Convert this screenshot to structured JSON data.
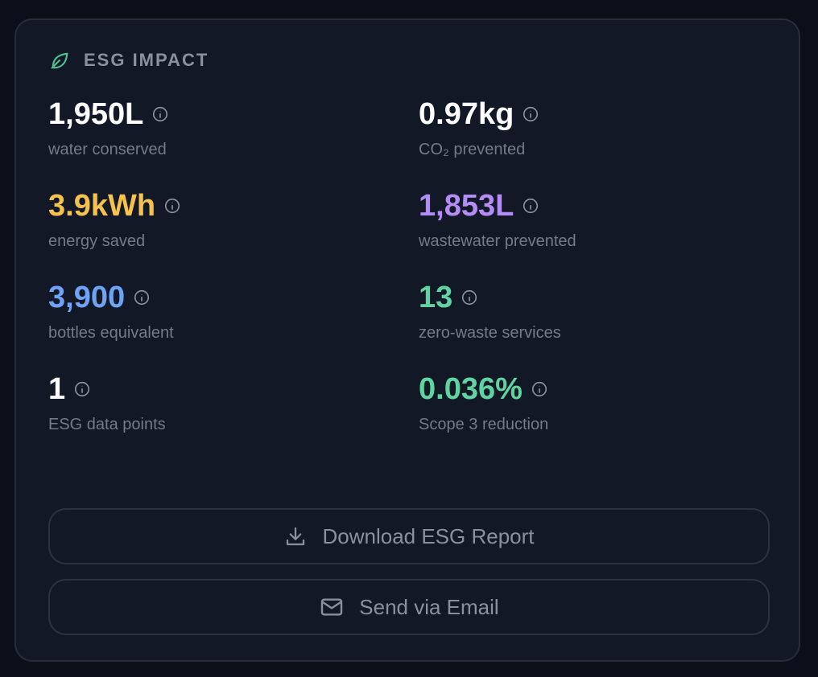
{
  "header": {
    "title": "ESG IMPACT"
  },
  "metrics": [
    {
      "value": "1,950L",
      "label": "water conserved",
      "color": "#ffffff"
    },
    {
      "value": "0.97kg",
      "label": "CO₂ prevented",
      "color": "#ffffff"
    },
    {
      "value": "3.9kWh",
      "label": "energy saved",
      "color": "#f4c24d"
    },
    {
      "value": "1,853L",
      "label": "wastewater prevented",
      "color": "#b48cf5"
    },
    {
      "value": "3,900",
      "label": "bottles equivalent",
      "color": "#6fa3f5"
    },
    {
      "value": "13",
      "label": "zero-waste services",
      "color": "#5fd3a0"
    },
    {
      "value": "1",
      "label": "ESG data points",
      "color": "#ffffff"
    },
    {
      "value": "0.036%",
      "label": "Scope 3 reduction",
      "color": "#5fd3a0"
    }
  ],
  "buttons": {
    "download": "Download ESG Report",
    "email": "Send via Email"
  }
}
